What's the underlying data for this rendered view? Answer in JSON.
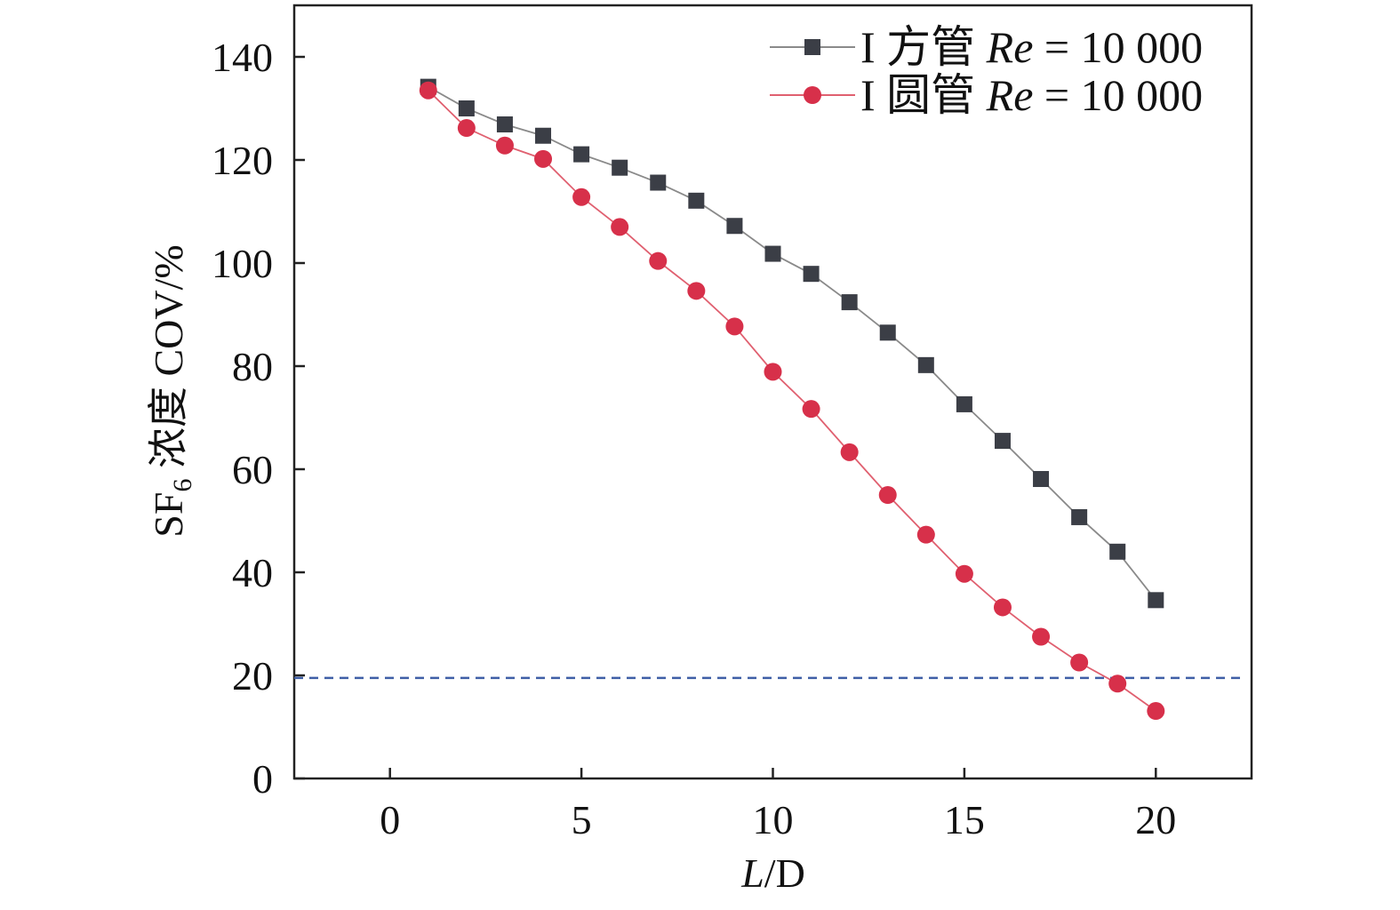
{
  "chart_data": {
    "type": "line",
    "xlabel_italic": "L",
    "xlabel_rest": "/D",
    "ylabel_main": "SF",
    "ylabel_sub": "6",
    "ylabel_rest": " 浓度 COV/%",
    "xlim": [
      -2.5,
      22.5
    ],
    "ylim": [
      0,
      150
    ],
    "xticks": [
      0,
      5,
      10,
      15,
      20
    ],
    "yticks": [
      0,
      20,
      40,
      60,
      80,
      100,
      120,
      140
    ],
    "grid": false,
    "legend_position": "top-right",
    "x": [
      1,
      2,
      3,
      4,
      5,
      6,
      7,
      8,
      9,
      10,
      11,
      12,
      13,
      14,
      15,
      16,
      17,
      18,
      19,
      20
    ],
    "series": [
      {
        "name_prefix": "I 方管 ",
        "name_italic": "Re",
        "name_suffix": " = 10 000",
        "marker": "square",
        "color": "#3b3e46",
        "line_color": "#8a8a8a",
        "values": [
          134.2,
          130.0,
          126.9,
          124.7,
          121.1,
          118.5,
          115.6,
          112.1,
          107.2,
          101.8,
          97.9,
          92.4,
          86.5,
          80.2,
          72.6,
          65.5,
          58.1,
          50.7,
          44.0,
          34.6
        ]
      },
      {
        "name_prefix": "I 圆管 ",
        "name_italic": "Re",
        "name_suffix": " = 10 000",
        "marker": "circle",
        "color": "#d7304a",
        "line_color": "#e06070",
        "values": [
          133.5,
          126.2,
          122.8,
          120.2,
          112.8,
          107.0,
          100.4,
          94.6,
          87.7,
          78.9,
          71.7,
          63.3,
          55.0,
          47.3,
          39.7,
          33.2,
          27.5,
          22.5,
          18.4,
          13.1
        ]
      }
    ],
    "reference_line": {
      "y": 19.5,
      "style": "dashed",
      "color": "#3f5fa6"
    }
  }
}
